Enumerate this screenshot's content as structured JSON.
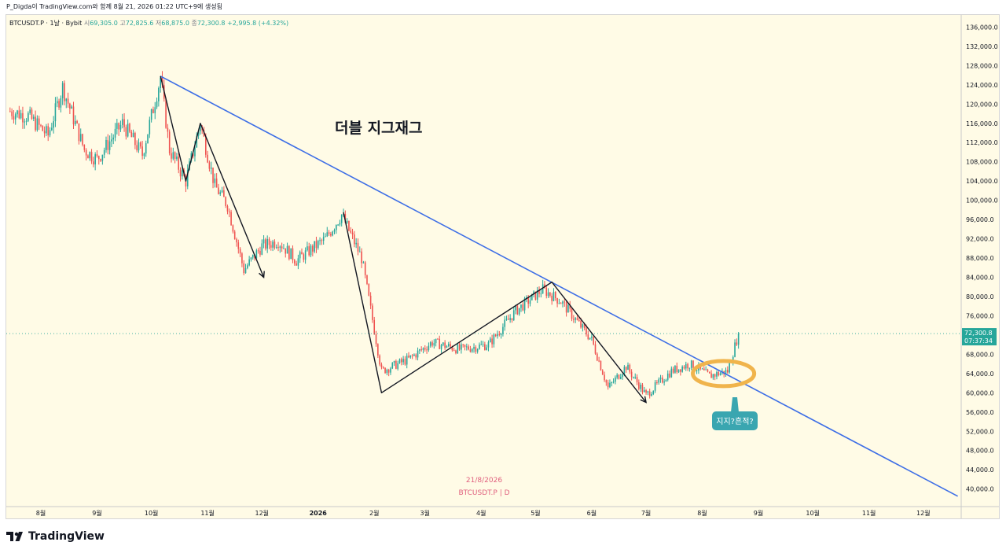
{
  "header": {
    "publish_line": "P_Digda이 TradingView.com와 함께 8월 21, 2026 01:22 UTC+9에 생성됨"
  },
  "legend": {
    "symbol": "BTCUSDT.P · 1날 · Bybit",
    "open_label": "시",
    "open": "69,305.0",
    "high_label": "고",
    "high": "72,825.6",
    "low_label": "저",
    "low": "68,875.0",
    "close_label": "종",
    "close": "72,300.8",
    "change": "+2,995.8 (+4.32%)"
  },
  "annotations": {
    "title": "더블 지그재그",
    "callout": "지지?흔적?",
    "watermark_date": "21/8/2026",
    "watermark_symbol": "BTCUSDT.P | D"
  },
  "price_tag": {
    "price": "72,300.8",
    "countdown": "07:37:34"
  },
  "footer": {
    "brand": "TradingView"
  },
  "colors": {
    "background": "#fffbe6",
    "up": "#26a69a",
    "down": "#ef5350",
    "trendline": "#3d6ee6",
    "zigzag": "#131722",
    "highlight": "#f0b44c",
    "callout": "#3aa6b0",
    "price_tag": "#26a69a"
  },
  "chart_data": {
    "type": "candlestick",
    "symbol": "BTCUSDT.P",
    "interval": "1D",
    "exchange": "Bybit",
    "x_ticks": [
      "8월",
      "9월",
      "10월",
      "11월",
      "12월",
      "2026",
      "2월",
      "3월",
      "4월",
      "5월",
      "6월",
      "7월",
      "8월",
      "9월",
      "10월",
      "11월",
      "12월"
    ],
    "y_ticks": [
      "136,000.0",
      "132,000.0",
      "128,000.0",
      "124,000.0",
      "120,000.0",
      "116,000.0",
      "112,000.0",
      "108,000.0",
      "104,000.0",
      "100,000.0",
      "96,000.0",
      "92,000.0",
      "88,000.0",
      "84,000.0",
      "80,000.0",
      "76,000.0",
      "68,000.0",
      "64,000.0",
      "60,000.0",
      "56,000.0",
      "52,000.0",
      "48,000.0",
      "44,000.0",
      "40,000.0"
    ],
    "ylim": [
      37000,
      138000
    ],
    "grid": false,
    "last_price": 72300.8,
    "price_path": [
      [
        "2025-07-15",
        118500
      ],
      [
        "2025-07-25",
        117500
      ],
      [
        "2025-08-05",
        113500
      ],
      [
        "2025-08-13",
        123500
      ],
      [
        "2025-08-25",
        110500
      ],
      [
        "2025-09-01",
        108500
      ],
      [
        "2025-09-15",
        116000
      ],
      [
        "2025-09-26",
        109500
      ],
      [
        "2025-10-06",
        125500
      ],
      [
        "2025-10-11",
        110500
      ],
      [
        "2025-10-20",
        104000
      ],
      [
        "2025-10-28",
        116000
      ],
      [
        "2025-11-05",
        103000
      ],
      [
        "2025-11-12",
        99000
      ],
      [
        "2025-11-21",
        85500
      ],
      [
        "2025-12-01",
        90500
      ],
      [
        "2025-12-10",
        91500
      ],
      [
        "2025-12-20",
        87500
      ],
      [
        "2026-01-05",
        92000
      ],
      [
        "2026-01-14",
        97000
      ],
      [
        "2026-01-25",
        88000
      ],
      [
        "2026-02-05",
        64500
      ],
      [
        "2026-02-20",
        67000
      ],
      [
        "2026-03-05",
        70500
      ],
      [
        "2026-03-20",
        69000
      ],
      [
        "2026-04-05",
        70000
      ],
      [
        "2026-04-20",
        77000
      ],
      [
        "2026-05-05",
        81500
      ],
      [
        "2026-05-15",
        79000
      ],
      [
        "2026-06-01",
        71000
      ],
      [
        "2026-06-10",
        61000
      ],
      [
        "2026-06-20",
        65500
      ],
      [
        "2026-07-01",
        59500
      ],
      [
        "2026-07-15",
        64500
      ],
      [
        "2026-07-25",
        66000
      ],
      [
        "2026-08-05",
        63500
      ],
      [
        "2026-08-15",
        64500
      ],
      [
        "2026-08-21",
        72300
      ]
    ],
    "trendline": [
      [
        "2025-10-06",
        125800
      ],
      [
        "2026-12-20",
        38500
      ]
    ],
    "zigzag_1": [
      [
        "2025-10-06",
        125800
      ],
      [
        "2025-10-20",
        104000
      ],
      [
        "2025-10-28",
        116000
      ],
      [
        "2025-12-02",
        84000
      ]
    ],
    "zigzag_2": [
      [
        "2026-01-15",
        97500
      ],
      [
        "2026-02-05",
        60000
      ],
      [
        "2026-05-10",
        83000
      ],
      [
        "2026-07-01",
        58000
      ]
    ],
    "highlight_region": {
      "from": "2026-08-01",
      "to": "2026-08-21",
      "price_center": 64000
    }
  }
}
